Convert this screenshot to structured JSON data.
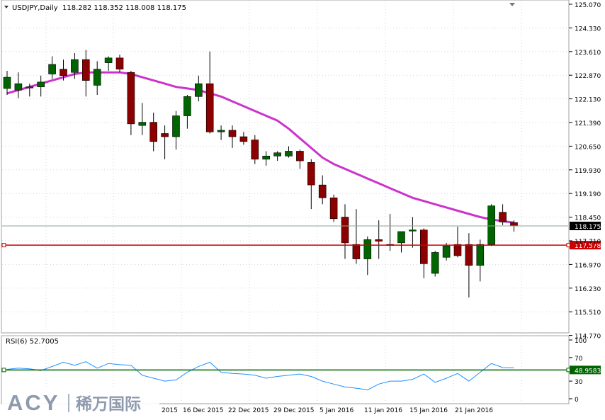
{
  "header": {
    "symbol_timeframe": "USDJPY,Daily",
    "ohlc": "118.282 118.352 118.008 118.175"
  },
  "rsi_label": "RSI(6) 52.7005",
  "logo": {
    "brand": "ACY",
    "chinese": "稀万国际"
  },
  "colors": {
    "bull": "#006400",
    "bear": "#8b0000",
    "ma": "#cc33cc",
    "hline": "#cc0000",
    "rsi_line": "#1e90ff",
    "rsi_level": "#006400",
    "grid": "#d0d8e0"
  },
  "chart_data": [
    {
      "type": "candlestick",
      "title": "USDJPY,Daily",
      "ylim": [
        114.4,
        125.07
      ],
      "y_ticks": [
        "125.070",
        "124.330",
        "123.610",
        "122.870",
        "122.130",
        "121.390",
        "120.650",
        "119.930",
        "119.190",
        "118.450",
        "117.710",
        "116.970",
        "116.230",
        "115.510",
        "114.770"
      ],
      "x_ticks": [
        "2015",
        "16 Dec 2015",
        "22 Dec 2015",
        "29 Dec 2015",
        "5 Jan 2016",
        "11 Jan 2016",
        "15 Jan 2016",
        "21 Jan 2016"
      ],
      "current_price": "118.175",
      "horizontal_line": "117.578",
      "series": [
        {
          "candles": [
            {
              "o": 122.45,
              "h": 123.0,
              "l": 122.25,
              "c": 122.8
            },
            {
              "o": 122.4,
              "h": 122.95,
              "l": 122.15,
              "c": 122.6
            },
            {
              "o": 122.5,
              "h": 122.6,
              "l": 122.2,
              "c": 122.5
            },
            {
              "o": 122.5,
              "h": 122.85,
              "l": 122.2,
              "c": 122.65
            },
            {
              "o": 122.9,
              "h": 123.45,
              "l": 122.75,
              "c": 123.2
            },
            {
              "o": 123.05,
              "h": 123.35,
              "l": 122.7,
              "c": 122.85
            },
            {
              "o": 122.95,
              "h": 123.55,
              "l": 122.75,
              "c": 123.35
            },
            {
              "o": 123.35,
              "h": 123.65,
              "l": 122.2,
              "c": 122.7
            },
            {
              "o": 122.55,
              "h": 123.3,
              "l": 122.25,
              "c": 123.05
            },
            {
              "o": 123.25,
              "h": 123.45,
              "l": 123.0,
              "c": 123.4
            },
            {
              "o": 123.4,
              "h": 123.5,
              "l": 122.95,
              "c": 123.05
            },
            {
              "o": 122.95,
              "h": 123.0,
              "l": 121.0,
              "c": 121.35
            },
            {
              "o": 121.3,
              "h": 122.0,
              "l": 121.0,
              "c": 121.4
            },
            {
              "o": 121.4,
              "h": 121.7,
              "l": 120.5,
              "c": 120.8
            },
            {
              "o": 121.05,
              "h": 121.3,
              "l": 120.25,
              "c": 120.95
            },
            {
              "o": 120.95,
              "h": 121.75,
              "l": 120.55,
              "c": 121.6
            },
            {
              "o": 121.6,
              "h": 122.25,
              "l": 121.2,
              "c": 122.2
            },
            {
              "o": 122.2,
              "h": 122.85,
              "l": 122.05,
              "c": 122.6
            },
            {
              "o": 122.6,
              "h": 123.6,
              "l": 121.05,
              "c": 121.1
            },
            {
              "o": 121.1,
              "h": 121.3,
              "l": 120.85,
              "c": 121.15
            },
            {
              "o": 121.15,
              "h": 121.3,
              "l": 120.6,
              "c": 120.95
            },
            {
              "o": 120.95,
              "h": 121.1,
              "l": 120.7,
              "c": 120.8
            },
            {
              "o": 120.85,
              "h": 121.0,
              "l": 120.1,
              "c": 120.25
            },
            {
              "o": 120.25,
              "h": 120.5,
              "l": 120.05,
              "c": 120.35
            },
            {
              "o": 120.35,
              "h": 120.5,
              "l": 120.2,
              "c": 120.45
            },
            {
              "o": 120.35,
              "h": 120.65,
              "l": 120.3,
              "c": 120.5
            },
            {
              "o": 120.5,
              "h": 120.55,
              "l": 119.95,
              "c": 120.2
            },
            {
              "o": 120.15,
              "h": 120.25,
              "l": 118.7,
              "c": 119.45
            },
            {
              "o": 119.45,
              "h": 119.75,
              "l": 118.85,
              "c": 119.05
            },
            {
              "o": 119.05,
              "h": 119.15,
              "l": 118.3,
              "c": 118.4
            },
            {
              "o": 118.45,
              "h": 118.85,
              "l": 117.15,
              "c": 117.65
            },
            {
              "o": 117.6,
              "h": 118.7,
              "l": 117.0,
              "c": 117.15
            },
            {
              "o": 117.15,
              "h": 117.85,
              "l": 116.65,
              "c": 117.75
            },
            {
              "o": 117.75,
              "h": 118.35,
              "l": 117.15,
              "c": 117.7
            },
            {
              "o": 117.6,
              "h": 118.55,
              "l": 117.4,
              "c": 117.6
            },
            {
              "o": 117.65,
              "h": 118.0,
              "l": 117.35,
              "c": 118.0
            },
            {
              "o": 118.05,
              "h": 118.45,
              "l": 117.5,
              "c": 118.05
            },
            {
              "o": 118.05,
              "h": 118.1,
              "l": 116.55,
              "c": 117.0
            },
            {
              "o": 116.7,
              "h": 117.4,
              "l": 116.6,
              "c": 117.35
            },
            {
              "o": 117.2,
              "h": 117.65,
              "l": 117.1,
              "c": 117.55
            },
            {
              "o": 117.6,
              "h": 118.15,
              "l": 117.2,
              "c": 117.25
            },
            {
              "o": 117.6,
              "h": 117.95,
              "l": 115.95,
              "c": 116.95
            },
            {
              "o": 116.95,
              "h": 117.75,
              "l": 116.45,
              "c": 117.6
            },
            {
              "o": 117.6,
              "h": 118.85,
              "l": 117.55,
              "c": 118.8
            },
            {
              "o": 118.6,
              "h": 118.85,
              "l": 118.2,
              "c": 118.3
            },
            {
              "o": 118.28,
              "h": 118.35,
              "l": 118.0,
              "c": 118.18
            }
          ]
        },
        {
          "name": "MA",
          "values": [
            122.3,
            122.4,
            122.5,
            122.6,
            122.7,
            122.8,
            122.9,
            122.95,
            122.95,
            122.95,
            122.95,
            122.9,
            122.8,
            122.7,
            122.6,
            122.5,
            122.45,
            122.4,
            122.3,
            122.2,
            122.05,
            121.9,
            121.75,
            121.6,
            121.45,
            121.2,
            120.9,
            120.6,
            120.3,
            120.1,
            119.95,
            119.8,
            119.65,
            119.5,
            119.35,
            119.2,
            119.05,
            118.95,
            118.85,
            118.75,
            118.65,
            118.55,
            118.45,
            118.38,
            118.32,
            118.28
          ]
        }
      ]
    },
    {
      "type": "line",
      "title": "RSI(6) 52.7005",
      "ylim": [
        0,
        100
      ],
      "y_ticks": [
        "100",
        "70",
        "30",
        "0"
      ],
      "level": "48.9583",
      "series": [
        {
          "values": [
            50,
            52,
            51,
            48,
            55,
            62,
            57,
            63,
            52,
            60,
            58,
            57,
            40,
            35,
            30,
            32,
            45,
            55,
            62,
            45,
            43,
            42,
            40,
            35,
            38,
            40,
            42,
            38,
            30,
            25,
            20,
            18,
            15,
            25,
            30,
            30,
            33,
            42,
            28,
            35,
            43,
            30,
            45,
            60,
            53,
            52.7
          ]
        }
      ]
    }
  ]
}
